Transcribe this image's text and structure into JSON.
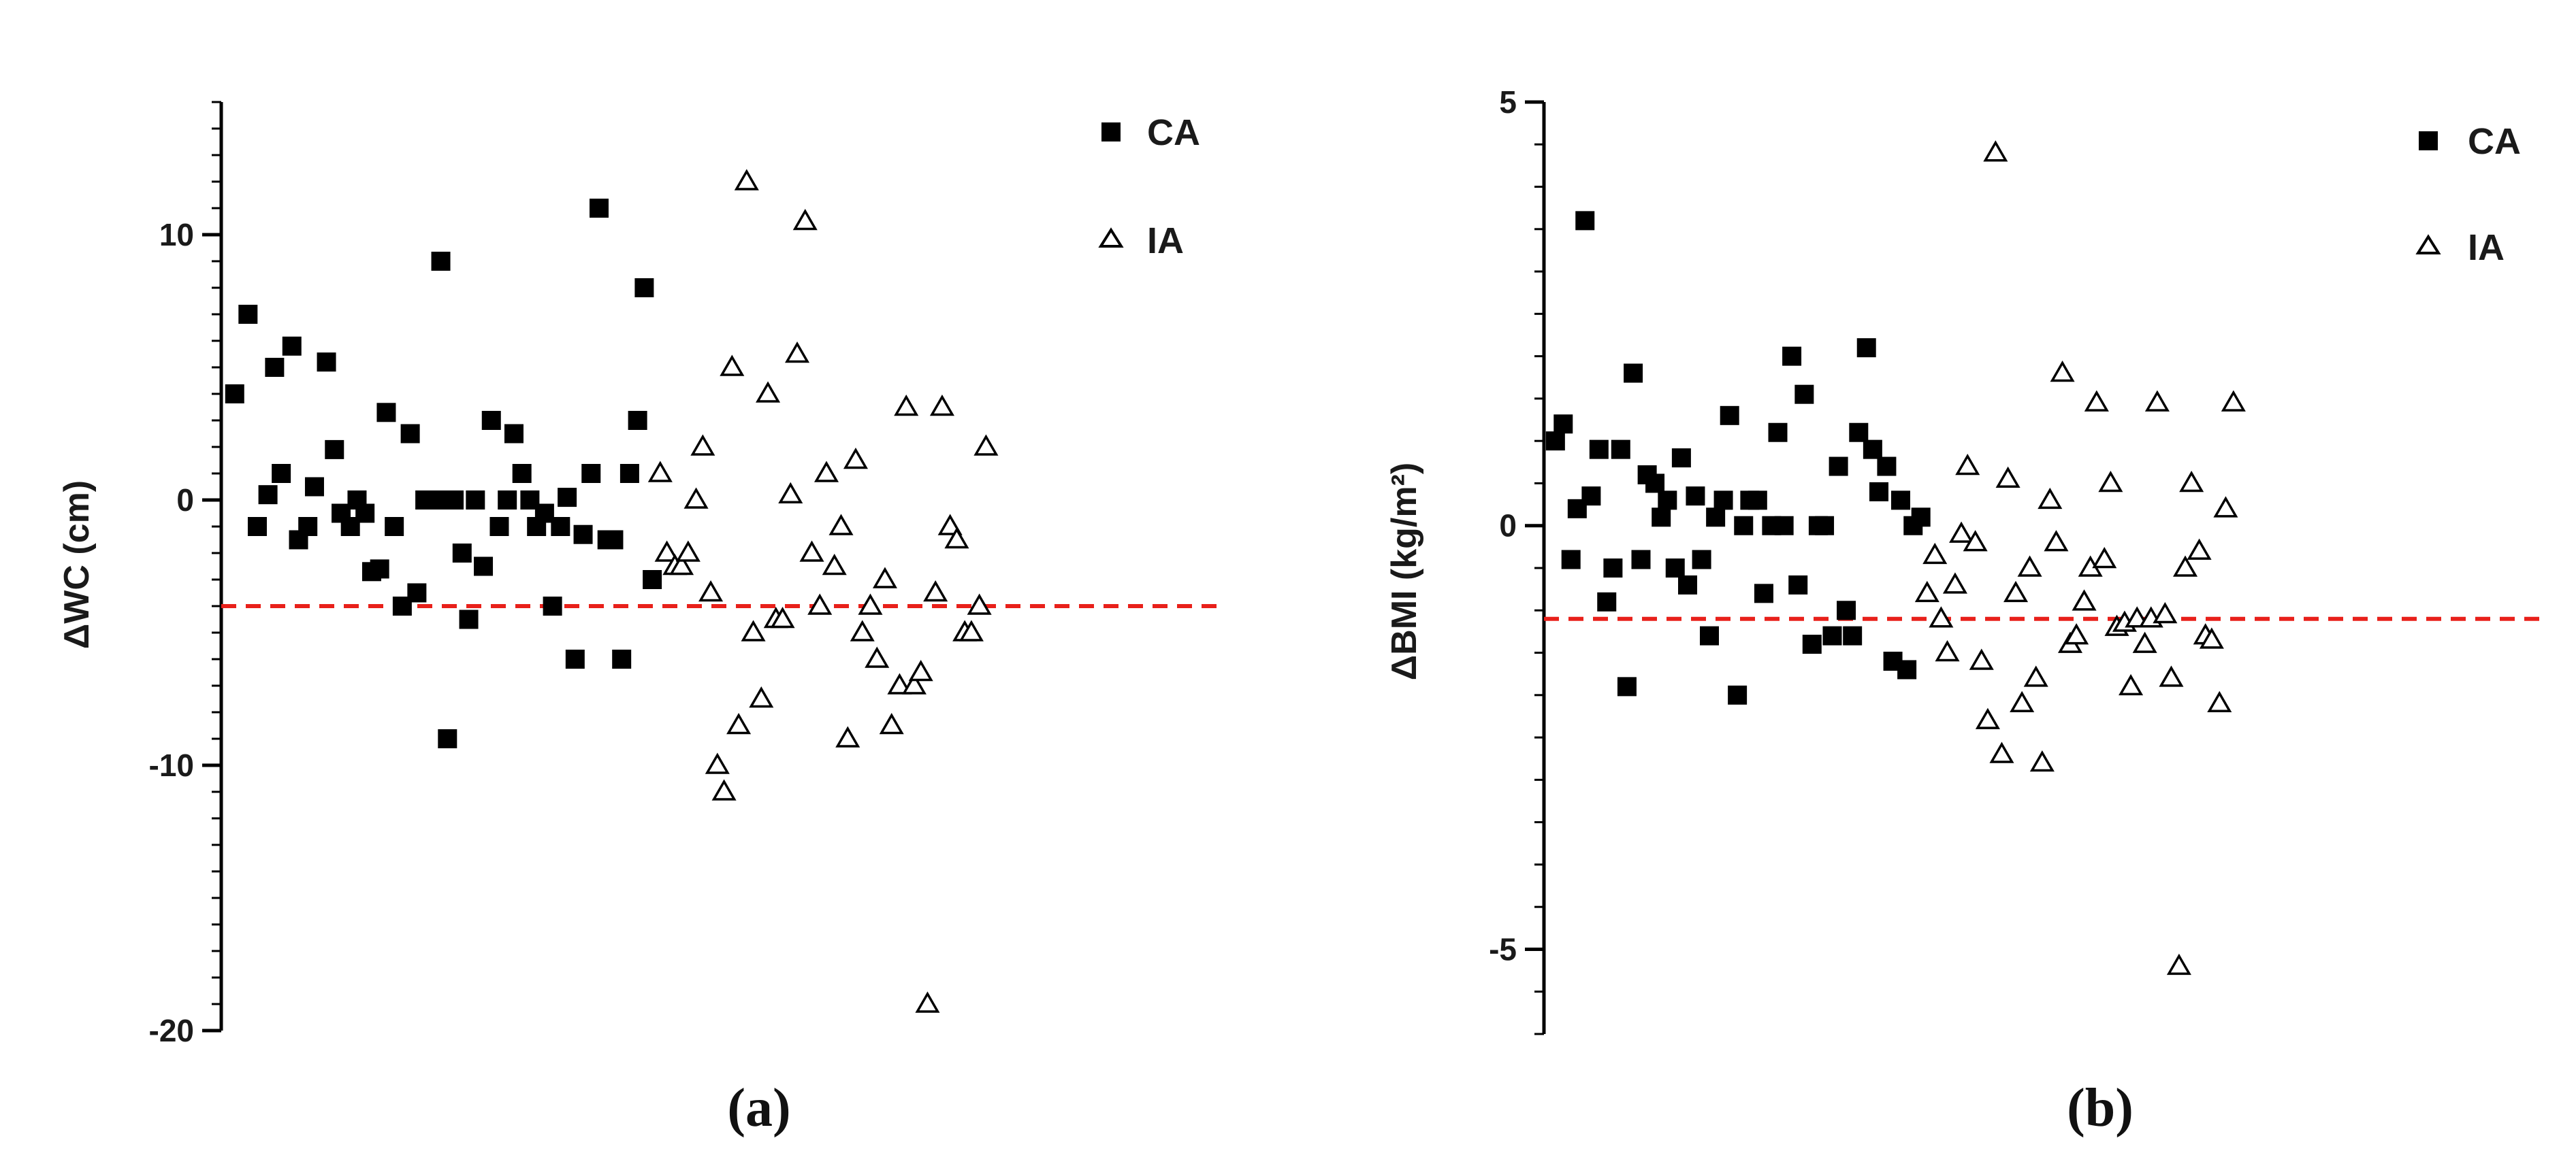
{
  "figure": {
    "panels": [
      {
        "label": "(a)"
      },
      {
        "label": "(b)"
      }
    ]
  },
  "chart_data": [
    {
      "type": "scatter",
      "title": "",
      "panel_label": "(a)",
      "xlabel": "",
      "ylabel": "ΔWC (cm)",
      "ylim": [
        -20,
        15
      ],
      "xlim": [
        0,
        75
      ],
      "yticks": [
        -20,
        -10,
        0,
        10
      ],
      "ytick_labels": [
        "-20",
        "-10",
        "0",
        "10"
      ],
      "grid": false,
      "legend_position": "top-right",
      "reference_line": {
        "y": -4,
        "style": "dashed",
        "color": "#e8201a"
      },
      "series": [
        {
          "name": "CA",
          "marker": "filled-square",
          "color": "#000000",
          "points": [
            [
              0.5,
              4
            ],
            [
              1.5,
              7
            ],
            [
              2.2,
              -1
            ],
            [
              3,
              0.2
            ],
            [
              3.5,
              5
            ],
            [
              4,
              1
            ],
            [
              4.8,
              5.8
            ],
            [
              5.3,
              -1.5
            ],
            [
              6,
              -1
            ],
            [
              6.5,
              0.5
            ],
            [
              7.4,
              5.2
            ],
            [
              8,
              1.9
            ],
            [
              8.5,
              -0.5
            ],
            [
              9.2,
              -1
            ],
            [
              9.7,
              0
            ],
            [
              10.3,
              -0.5
            ],
            [
              10.8,
              -2.7
            ],
            [
              11.4,
              -2.6
            ],
            [
              11.9,
              3.3
            ],
            [
              12.5,
              -1
            ],
            [
              13.1,
              -4
            ],
            [
              13.7,
              2.5
            ],
            [
              14.2,
              -3.5
            ],
            [
              14.8,
              0
            ],
            [
              15.6,
              0
            ],
            [
              16,
              9
            ],
            [
              16.5,
              -9
            ],
            [
              17,
              0
            ],
            [
              17.6,
              -2
            ],
            [
              18.1,
              -4.5
            ],
            [
              18.6,
              0
            ],
            [
              19.2,
              -2.5
            ],
            [
              19.8,
              3
            ],
            [
              20.4,
              -1
            ],
            [
              21,
              0
            ],
            [
              21.5,
              2.5
            ],
            [
              22.1,
              1
            ],
            [
              22.7,
              0
            ],
            [
              23.2,
              -1
            ],
            [
              23.8,
              -0.5
            ],
            [
              24.4,
              -4
            ],
            [
              25,
              -1
            ],
            [
              25.5,
              0.1
            ],
            [
              26.1,
              -6
            ],
            [
              26.7,
              -1.3
            ],
            [
              27.3,
              1
            ],
            [
              27.9,
              11
            ],
            [
              28.5,
              -1.5
            ],
            [
              29,
              -1.5
            ],
            [
              29.6,
              -6
            ],
            [
              30.2,
              1
            ],
            [
              30.8,
              3
            ],
            [
              31.3,
              8
            ],
            [
              31.9,
              -3
            ]
          ]
        },
        {
          "name": "IA",
          "marker": "open-triangle",
          "color": "#000000",
          "points": [
            [
              32.5,
              1
            ],
            [
              33,
              -2
            ],
            [
              33.6,
              -2.5
            ],
            [
              34.1,
              -2.5
            ],
            [
              34.6,
              -2
            ],
            [
              35.2,
              0
            ],
            [
              35.7,
              2
            ],
            [
              36.3,
              -3.5
            ],
            [
              36.8,
              -10
            ],
            [
              37.3,
              -11
            ],
            [
              37.9,
              5
            ],
            [
              38.4,
              -8.5
            ],
            [
              39,
              12
            ],
            [
              39.5,
              -5
            ],
            [
              40.1,
              -7.5
            ],
            [
              40.6,
              4
            ],
            [
              41.2,
              -4.5
            ],
            [
              41.7,
              -4.5
            ],
            [
              42.3,
              0.2
            ],
            [
              42.8,
              5.5
            ],
            [
              43.4,
              10.5
            ],
            [
              43.9,
              -2
            ],
            [
              44.5,
              -4
            ],
            [
              45,
              1
            ],
            [
              45.6,
              -2.5
            ],
            [
              46.1,
              -1
            ],
            [
              46.6,
              -9
            ],
            [
              47.2,
              1.5
            ],
            [
              47.7,
              -5
            ],
            [
              48.3,
              -4
            ],
            [
              48.8,
              -6
            ],
            [
              49.4,
              -3
            ],
            [
              49.9,
              -8.5
            ],
            [
              50.5,
              -7
            ],
            [
              51,
              3.5
            ],
            [
              51.6,
              -7
            ],
            [
              52.1,
              -6.5
            ],
            [
              52.6,
              -19
            ],
            [
              53.2,
              -3.5
            ],
            [
              53.7,
              3.5
            ],
            [
              54.3,
              -1
            ],
            [
              54.8,
              -1.5
            ],
            [
              55.4,
              -5
            ],
            [
              55.9,
              -5
            ],
            [
              56.5,
              -4
            ],
            [
              57,
              2
            ]
          ]
        }
      ]
    },
    {
      "type": "scatter",
      "title": "",
      "panel_label": "(b)",
      "xlabel": "",
      "ylabel": "ΔBMI (kg/m²)",
      "ylim": [
        -6,
        5
      ],
      "xlim": [
        0,
        64
      ],
      "yticks": [
        -5,
        0,
        5
      ],
      "ytick_labels": [
        "-5",
        "0",
        "5"
      ],
      "grid": false,
      "legend_position": "top-right",
      "reference_line": {
        "y": -1.1,
        "style": "dashed",
        "color": "#e8201a"
      },
      "series": [
        {
          "name": "CA",
          "marker": "filled-square",
          "color": "#000000",
          "points": [
            [
              0.3,
              1
            ],
            [
              0.8,
              1.2
            ],
            [
              1.3,
              -0.4
            ],
            [
              1.7,
              0.2
            ],
            [
              2.2,
              3.6
            ],
            [
              2.6,
              0.35
            ],
            [
              3.1,
              0.9
            ],
            [
              3.6,
              -0.9
            ],
            [
              4,
              -0.5
            ],
            [
              4.5,
              0.9
            ],
            [
              4.9,
              -1.9
            ],
            [
              5.3,
              1.8
            ],
            [
              5.8,
              -0.4
            ],
            [
              6.2,
              0.6
            ],
            [
              6.7,
              0.5
            ],
            [
              7.1,
              0.1
            ],
            [
              7.5,
              0.3
            ],
            [
              8,
              -0.5
            ],
            [
              8.4,
              0.8
            ],
            [
              8.8,
              -0.7
            ],
            [
              9.3,
              0.35
            ],
            [
              9.7,
              -0.4
            ],
            [
              10.2,
              -1.3
            ],
            [
              10.6,
              0.1
            ],
            [
              11.1,
              0.3
            ],
            [
              11.5,
              1.3
            ],
            [
              12,
              -2
            ],
            [
              12.4,
              0
            ],
            [
              12.8,
              0.3
            ],
            [
              13.3,
              0.3
            ],
            [
              13.7,
              -0.8
            ],
            [
              14.2,
              0
            ],
            [
              14.6,
              1.1
            ],
            [
              15,
              0
            ],
            [
              15.5,
              2
            ],
            [
              15.9,
              -0.7
            ],
            [
              16.3,
              1.55
            ],
            [
              16.8,
              -1.4
            ],
            [
              17.2,
              0
            ],
            [
              17.6,
              0
            ],
            [
              18.1,
              -1.3
            ],
            [
              18.5,
              0.7
            ],
            [
              19,
              -1
            ],
            [
              19.4,
              -1.3
            ],
            [
              19.8,
              1.1
            ],
            [
              20.3,
              2.1
            ],
            [
              20.7,
              0.9
            ],
            [
              21.1,
              0.4
            ],
            [
              21.6,
              0.7
            ],
            [
              22,
              -1.6
            ],
            [
              22.5,
              0.3
            ],
            [
              22.9,
              -1.7
            ],
            [
              23.3,
              0
            ],
            [
              23.8,
              0.1
            ]
          ]
        },
        {
          "name": "IA",
          "marker": "open-triangle",
          "color": "#000000",
          "points": [
            [
              24.2,
              -0.8
            ],
            [
              24.7,
              -0.35
            ],
            [
              25.1,
              -1.1
            ],
            [
              25.5,
              -1.5
            ],
            [
              26,
              -0.7
            ],
            [
              26.4,
              -0.1
            ],
            [
              26.8,
              0.7
            ],
            [
              27.3,
              -0.2
            ],
            [
              27.7,
              -1.6
            ],
            [
              28.1,
              -2.3
            ],
            [
              28.6,
              4.4
            ],
            [
              29,
              -2.7
            ],
            [
              29.4,
              0.55
            ],
            [
              29.9,
              -0.8
            ],
            [
              30.3,
              -2.1
            ],
            [
              30.8,
              -0.5
            ],
            [
              31.2,
              -1.8
            ],
            [
              31.6,
              -2.8
            ],
            [
              32.1,
              0.3
            ],
            [
              32.5,
              -0.2
            ],
            [
              32.9,
              1.8
            ],
            [
              33.4,
              -1.4
            ],
            [
              33.8,
              -1.3
            ],
            [
              34.3,
              -0.9
            ],
            [
              34.7,
              -0.5
            ],
            [
              35.1,
              1.45
            ],
            [
              35.6,
              -0.4
            ],
            [
              36,
              0.5
            ],
            [
              36.4,
              -1.2
            ],
            [
              36.9,
              -1.15
            ],
            [
              37.3,
              -1.9
            ],
            [
              37.7,
              -1.1
            ],
            [
              38.2,
              -1.4
            ],
            [
              38.6,
              -1.1
            ],
            [
              39,
              1.45
            ],
            [
              39.5,
              -1.05
            ],
            [
              39.9,
              -1.8
            ],
            [
              40.4,
              -5.2
            ],
            [
              40.8,
              -0.5
            ],
            [
              41.2,
              0.5
            ],
            [
              41.7,
              -0.3
            ],
            [
              42.1,
              -1.3
            ],
            [
              42.5,
              -1.35
            ],
            [
              43,
              -2.1
            ],
            [
              43.4,
              0.2
            ],
            [
              43.9,
              1.45
            ]
          ]
        }
      ]
    }
  ]
}
